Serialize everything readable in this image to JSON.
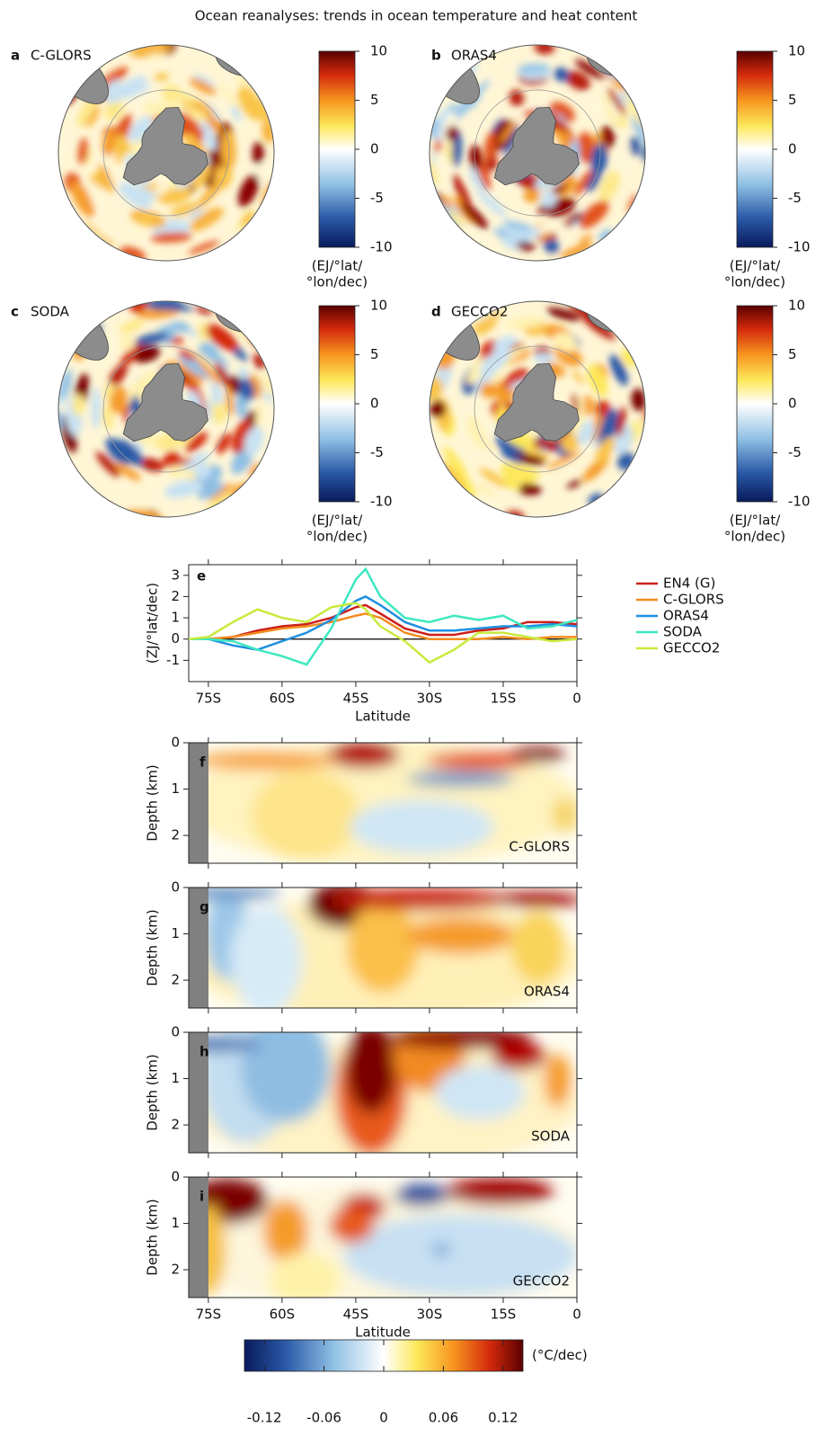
{
  "title": "Ocean reanalyses: trends in ocean temperature and heat content",
  "chart_data": [
    {
      "type": "map",
      "letter": "a",
      "label": "C-GLORS",
      "colorbar": {
        "lim": [
          -10,
          10
        ],
        "ticks": [
          10,
          5,
          0,
          -5,
          -10
        ],
        "label": [
          "(EJ/°lat/",
          "°lon/dec)"
        ]
      }
    },
    {
      "type": "map",
      "letter": "b",
      "label": "ORAS4",
      "colorbar": {
        "lim": [
          -10,
          10
        ],
        "ticks": [
          10,
          5,
          0,
          -5,
          -10
        ],
        "label": [
          "(EJ/°lat/",
          "°lon/dec)"
        ]
      }
    },
    {
      "type": "map",
      "letter": "c",
      "label": "SODA",
      "colorbar": {
        "lim": [
          -10,
          10
        ],
        "ticks": [
          10,
          5,
          0,
          -5,
          -10
        ],
        "label": [
          "(EJ/°lat/",
          "°lon/dec)"
        ]
      }
    },
    {
      "type": "map",
      "letter": "d",
      "label": "GECCO2",
      "colorbar": {
        "lim": [
          -10,
          10
        ],
        "ticks": [
          10,
          5,
          0,
          -5,
          -10
        ],
        "label": [
          "(EJ/°lat/",
          "°lon/dec)"
        ]
      }
    },
    {
      "type": "line",
      "letter": "e",
      "ylabel": "(ZJ/°lat/dec)",
      "xlabel": "Latitude",
      "x": [
        -79,
        -75,
        -70,
        -65,
        -60,
        -55,
        -50,
        -45,
        -43,
        -40,
        -35,
        -30,
        -25,
        -20,
        -15,
        -10,
        -5,
        0
      ],
      "xlim": [
        -79,
        0
      ],
      "xticks": [
        {
          "value": -75,
          "label": "75S"
        },
        {
          "value": -60,
          "label": "60S"
        },
        {
          "value": -45,
          "label": "45S"
        },
        {
          "value": -30,
          "label": "30S"
        },
        {
          "value": -15,
          "label": "15S"
        },
        0
      ],
      "ylim": [
        -2,
        3.5
      ],
      "yticks": [
        -1,
        0,
        1,
        2,
        3
      ],
      "series": [
        {
          "name": "EN4 (G)",
          "color": "#cc1f1a",
          "values": [
            0,
            0,
            0.1,
            0.4,
            0.6,
            0.7,
            1.0,
            1.5,
            1.6,
            1.2,
            0.5,
            0.2,
            0.2,
            0.4,
            0.5,
            0.8,
            0.8,
            0.7
          ]
        },
        {
          "name": "C-GLORS",
          "color": "#f28c1e",
          "values": [
            0,
            0,
            0.1,
            0.3,
            0.5,
            0.6,
            0.8,
            1.1,
            1.2,
            1.0,
            0.3,
            0,
            0,
            0,
            0.1,
            0,
            0.1,
            0.1
          ]
        },
        {
          "name": "ORAS4",
          "color": "#1f8fe0",
          "values": [
            0,
            0,
            -0.3,
            -0.5,
            -0.1,
            0.3,
            0.9,
            1.8,
            2.0,
            1.6,
            0.8,
            0.4,
            0.4,
            0.5,
            0.6,
            0.6,
            0.7,
            0.6
          ]
        },
        {
          "name": "SODA",
          "color": "#3de8c0",
          "values": [
            0,
            0,
            -0.1,
            -0.5,
            -0.8,
            -1.2,
            0.5,
            2.8,
            3.3,
            2.0,
            1.0,
            0.8,
            1.1,
            0.9,
            1.1,
            0.5,
            0.6,
            0.9
          ]
        },
        {
          "name": "GECCO2",
          "color": "#c8ea3c",
          "values": [
            0,
            0.1,
            0.8,
            1.4,
            1.0,
            0.8,
            1.5,
            1.7,
            1.4,
            0.6,
            -0.1,
            -1.1,
            -0.5,
            0.3,
            0.3,
            0.1,
            -0.1,
            0
          ]
        }
      ]
    },
    {
      "type": "section",
      "letter": "f",
      "label": "C-GLORS",
      "ylabel": "Depth (km)",
      "invert_y": true,
      "ylim": [
        0,
        2.6
      ],
      "yticks": [
        0,
        1,
        2
      ],
      "xlim": [
        -79,
        0
      ],
      "xticks": [
        -75,
        -60,
        -45,
        -30,
        -15,
        0
      ]
    },
    {
      "type": "section",
      "letter": "g",
      "label": "ORAS4",
      "ylabel": "Depth (km)",
      "invert_y": true,
      "ylim": [
        0,
        2.6
      ],
      "yticks": [
        0,
        1,
        2
      ],
      "xlim": [
        -79,
        0
      ],
      "xticks": [
        -75,
        -60,
        -45,
        -30,
        -15,
        0
      ]
    },
    {
      "type": "section",
      "letter": "h",
      "label": "SODA",
      "ylabel": "Depth (km)",
      "invert_y": true,
      "ylim": [
        0,
        2.6
      ],
      "yticks": [
        0,
        1,
        2
      ],
      "xlim": [
        -79,
        0
      ],
      "xticks": [
        -75,
        -60,
        -45,
        -30,
        -15,
        0
      ]
    },
    {
      "type": "section",
      "letter": "i",
      "label": "GECCO2",
      "ylabel": "Depth (km)",
      "xlabel": "Latitude",
      "invert_y": true,
      "ylim": [
        0,
        2.6
      ],
      "yticks": [
        0,
        1,
        2
      ],
      "xlim": [
        -79,
        0
      ],
      "xticks": [
        {
          "value": -75,
          "label": "75S"
        },
        {
          "value": -60,
          "label": "60S"
        },
        {
          "value": -45,
          "label": "45S"
        },
        {
          "value": -30,
          "label": "30S"
        },
        {
          "value": -15,
          "label": "15S"
        },
        0
      ]
    },
    {
      "type": "colorbar",
      "lim": [
        -0.14,
        0.14
      ],
      "ticks": [
        -0.12,
        -0.06,
        0,
        0.06,
        0.12
      ],
      "label": "(°C/dec)"
    }
  ]
}
